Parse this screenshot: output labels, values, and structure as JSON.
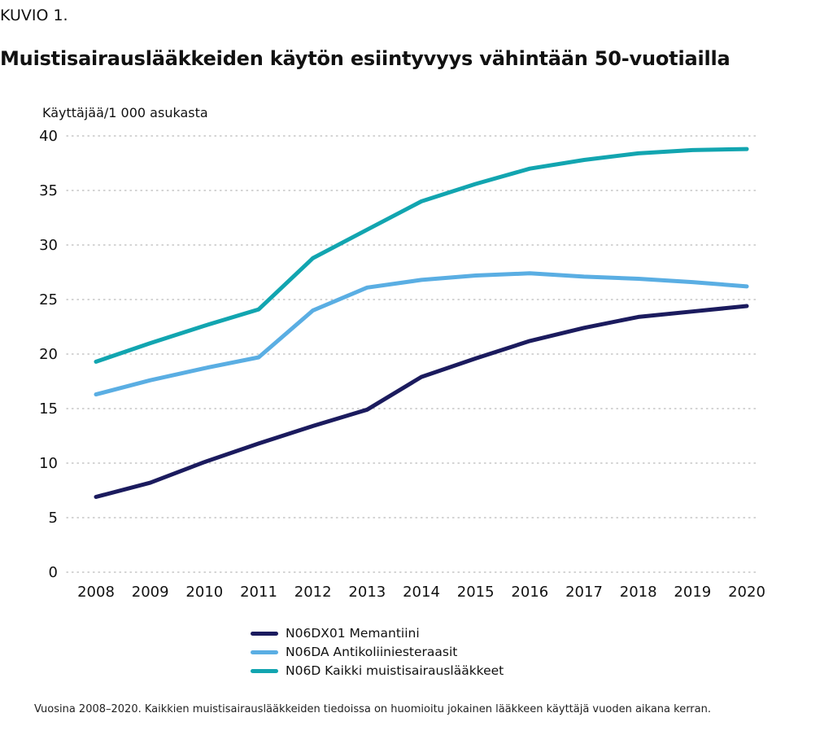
{
  "header": {
    "kicker": "KUVIO 1.",
    "title": "Muistisairauslääkkeiden käytön esiintyvyys vähintään 50-vuotiailla"
  },
  "footnote": "Vuosina 2008–2020. Kaikkien muistisairauslääkkeiden tiedoissa on huomioitu jokainen lääkkeen käyttäjä vuoden aikana kerran.",
  "chart_data": {
    "type": "line",
    "title": "Muistisairauslääkkeiden käytön esiintyvyys vähintään 50-vuotiailla",
    "ylabel": "Käyttäjää/1 000 asukasta",
    "xlabel": "",
    "x": [
      "2008",
      "2009",
      "2010",
      "2011",
      "2012",
      "2013",
      "2014",
      "2015",
      "2016",
      "2017",
      "2018",
      "2019",
      "2020"
    ],
    "ylim": [
      0,
      40
    ],
    "yticks": [
      0,
      5,
      10,
      15,
      20,
      25,
      30,
      35,
      40
    ],
    "grid": "horizontal dotted",
    "legend_position": "bottom",
    "series": [
      {
        "name": "N06DX01 Memantiini",
        "color": "#1b1b5e",
        "values": [
          6.9,
          8.2,
          10.1,
          11.8,
          13.4,
          14.9,
          17.9,
          19.6,
          21.2,
          22.4,
          23.4,
          23.9,
          24.4
        ]
      },
      {
        "name": "N06DA Antikoliiniesteraasit",
        "color": "#5aaee3",
        "values": [
          16.3,
          17.6,
          18.7,
          19.7,
          24.0,
          26.1,
          26.8,
          27.2,
          27.4,
          27.1,
          26.9,
          26.6,
          26.2
        ]
      },
      {
        "name": "N06D Kaikki muistisairauslääkkeet",
        "color": "#12a5b0",
        "values": [
          19.3,
          21.0,
          22.6,
          24.1,
          28.8,
          31.4,
          34.0,
          35.6,
          37.0,
          37.8,
          38.4,
          38.7,
          38.8
        ]
      }
    ]
  }
}
